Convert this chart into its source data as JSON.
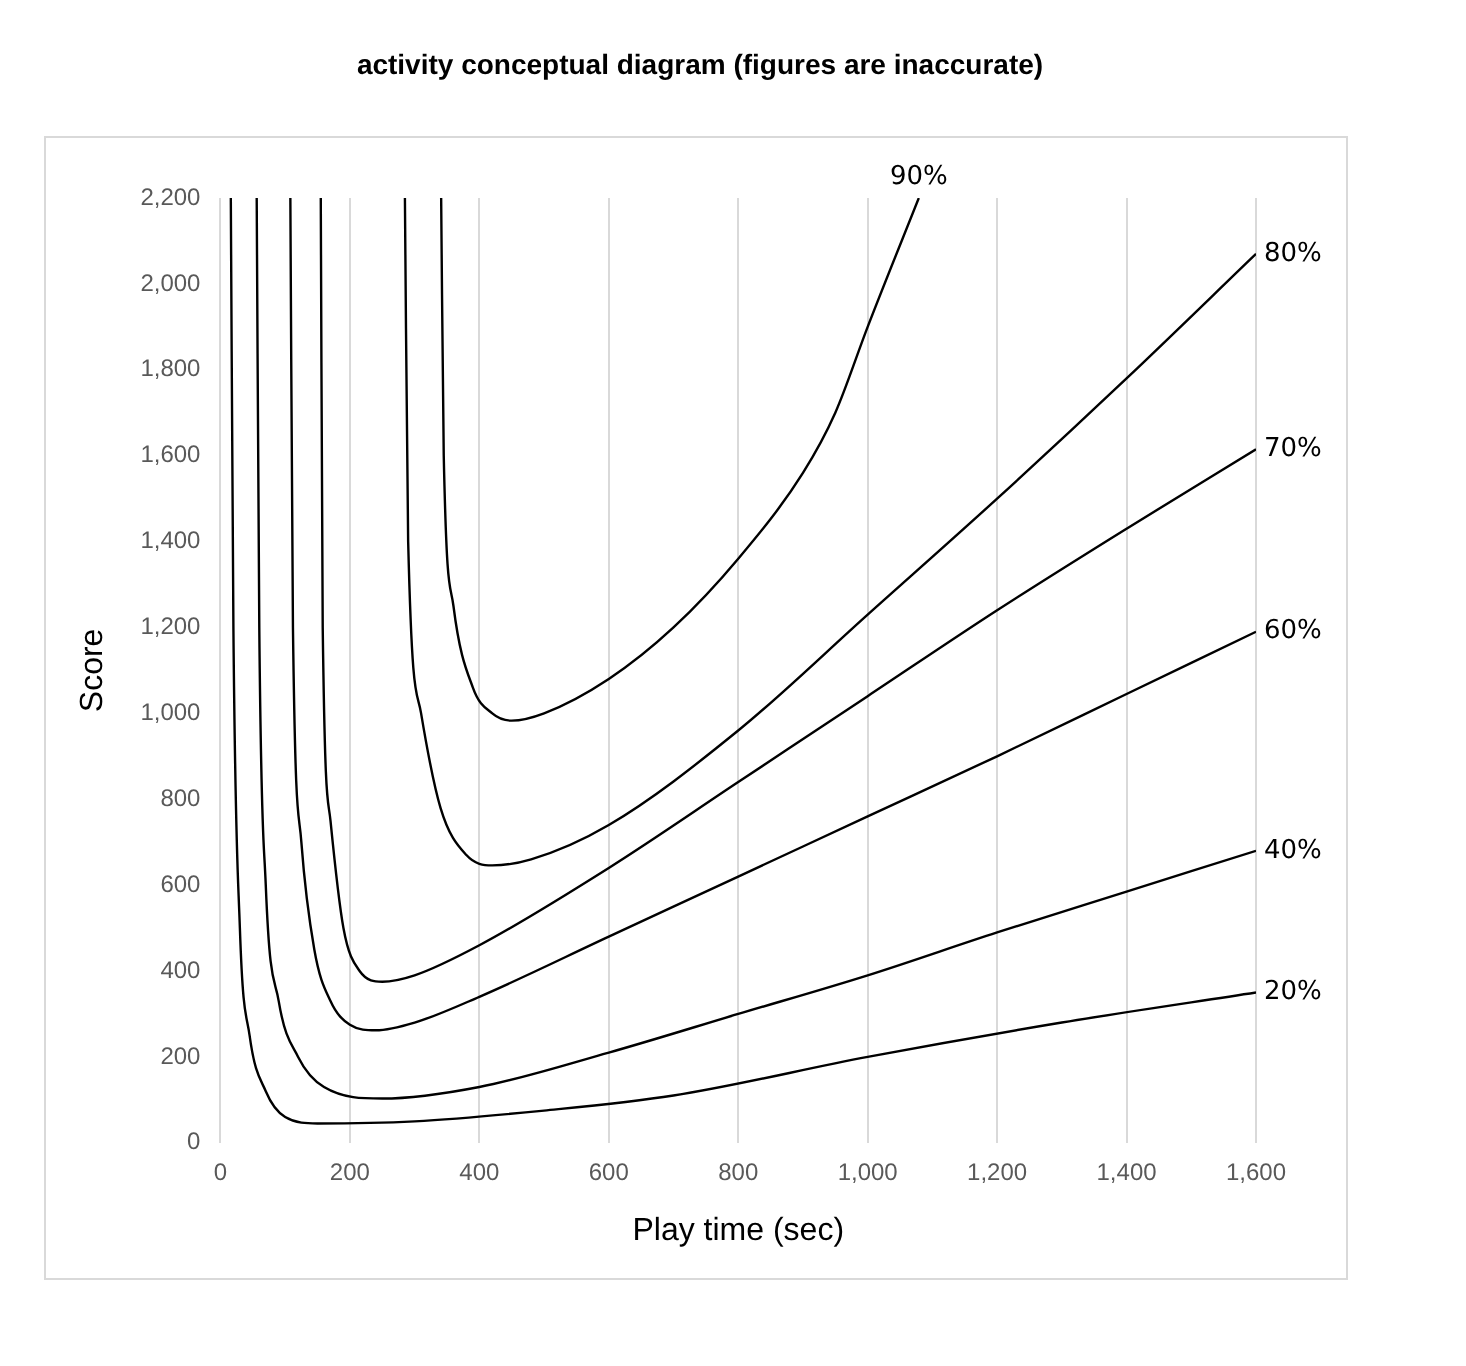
{
  "chart_data": {
    "type": "line",
    "title": "activity conceptual diagram (figures are inaccurate)",
    "xlabel": "Play time (sec)",
    "ylabel": "Score",
    "xlim": [
      0,
      1600
    ],
    "xticks": [
      0,
      200,
      400,
      600,
      800,
      {
        "value": 1000,
        "label": "1,000"
      },
      {
        "value": 1200,
        "label": "1,200"
      },
      {
        "value": 1400,
        "label": "1,400"
      },
      {
        "value": 1600,
        "label": "1,600"
      }
    ],
    "ylim": [
      0,
      2200
    ],
    "yticks": [
      0,
      200,
      400,
      600,
      800,
      {
        "value": 1000,
        "label": "1,000"
      },
      {
        "value": 1200,
        "label": "1,200"
      },
      {
        "value": 1400,
        "label": "1,400"
      },
      {
        "value": 1600,
        "label": "1,600"
      },
      {
        "value": 1800,
        "label": "1,800"
      },
      {
        "value": 2000,
        "label": "2,000"
      },
      {
        "value": 2200,
        "label": "2,200"
      }
    ],
    "grid": "x",
    "legend": false,
    "marker": "none",
    "line_style": "solid",
    "series": [
      {
        "name": "90%",
        "color": "#000000",
        "x": [
          341,
          345,
          360,
          390,
          420,
          450,
          500,
          600,
          700,
          800,
          900,
          950,
          1000,
          1079
        ],
        "values": [
          2200,
          1600,
          1250,
          1060,
          1000,
          983,
          1000,
          1080,
          1200,
          1360,
          1560,
          1700,
          1900,
          2200
        ]
      },
      {
        "name": "80%",
        "color": "#000000",
        "x": [
          285,
          290,
          310,
          340,
          380,
          420,
          480,
          600,
          800,
          1000,
          1200,
          1400,
          1600
        ],
        "values": [
          2200,
          1400,
          1000,
          780,
          670,
          646,
          660,
          740,
          960,
          1230,
          1500,
          1780,
          2070
        ]
      },
      {
        "name": "70%",
        "color": "#000000",
        "x": [
          155,
          158,
          170,
          190,
          215,
          250,
          300,
          400,
          600,
          800,
          1000,
          1200,
          1400,
          1600
        ],
        "values": [
          2200,
          1200,
          750,
          500,
          400,
          375,
          390,
          460,
          640,
          840,
          1040,
          1240,
          1430,
          1615
        ]
      },
      {
        "name": "60%",
        "color": "#000000",
        "x": [
          108,
          112,
          125,
          145,
          170,
          200,
          240,
          300,
          400,
          600,
          800,
          1000,
          1200,
          1400,
          1600
        ],
        "values": [
          2200,
          1200,
          700,
          450,
          330,
          275,
          262,
          280,
          340,
          480,
          620,
          760,
          900,
          1045,
          1190
        ]
      },
      {
        "name": "40%",
        "color": "#000000",
        "x": [
          56,
          60,
          70,
          90,
          120,
          160,
          250,
          400,
          600,
          800,
          1000,
          1200,
          1400,
          1600
        ],
        "values": [
          2200,
          1200,
          600,
          330,
          200,
          130,
          103,
          130,
          210,
          300,
          390,
          490,
          585,
          680
        ]
      },
      {
        "name": "20%",
        "color": "#000000",
        "x": [
          16,
          20,
          30,
          45,
          70,
          100,
          150,
          300,
          500,
          700,
          1000,
          1300,
          1600
        ],
        "values": [
          2200,
          1200,
          500,
          250,
          120,
          60,
          45,
          50,
          75,
          110,
          200,
          280,
          350
        ]
      }
    ]
  }
}
